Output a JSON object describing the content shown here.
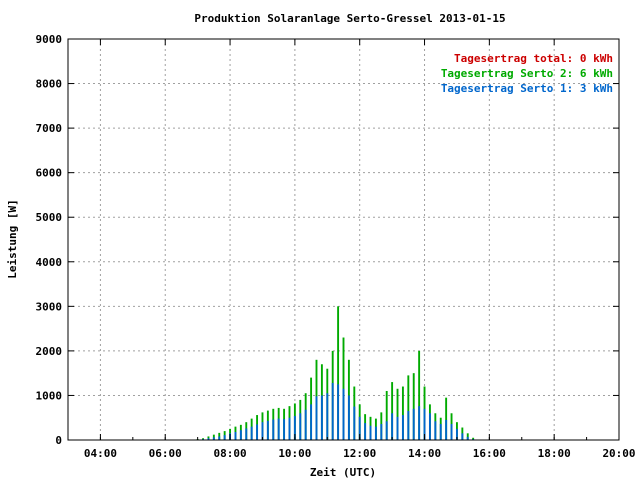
{
  "chart_data": {
    "type": "bar",
    "title": "Produktion Solaranlage Serto-Gressel 2013-01-15",
    "xlabel": "Zeit (UTC)",
    "ylabel": "Leistung [W]",
    "xlim": [
      "03:00",
      "20:00"
    ],
    "ylim": [
      0,
      9000
    ],
    "x_ticks": [
      "04:00",
      "06:00",
      "08:00",
      "10:00",
      "12:00",
      "14:00",
      "16:00",
      "18:00",
      "20:00"
    ],
    "y_ticks": [
      "0",
      "1000",
      "2000",
      "3000",
      "4000",
      "5000",
      "6000",
      "7000",
      "8000",
      "9000"
    ],
    "grid": true,
    "legend_position": "top-right",
    "colors": {
      "total": "#cc0000",
      "serto2": "#00aa00",
      "serto1": "#0066cc",
      "grid": "#a0a0a0"
    },
    "legend": [
      {
        "label": "Tagesertrag total: 0 kWh",
        "color": "#cc0000"
      },
      {
        "label": "Tagesertrag Serto 2: 6 kWh",
        "color": "#00aa00"
      },
      {
        "label": "Tagesertrag Serto 1: 3 kWh",
        "color": "#0066cc"
      }
    ],
    "x": [
      "07:00",
      "07:10",
      "07:20",
      "07:30",
      "07:40",
      "07:50",
      "08:00",
      "08:10",
      "08:20",
      "08:30",
      "08:40",
      "08:50",
      "09:00",
      "09:10",
      "09:20",
      "09:30",
      "09:40",
      "09:50",
      "10:00",
      "10:10",
      "10:20",
      "10:30",
      "10:40",
      "10:50",
      "11:00",
      "11:10",
      "11:20",
      "11:30",
      "11:40",
      "11:50",
      "12:00",
      "12:10",
      "12:20",
      "12:30",
      "12:40",
      "12:50",
      "13:00",
      "13:10",
      "13:20",
      "13:30",
      "13:40",
      "13:50",
      "14:00",
      "14:10",
      "14:20",
      "14:30",
      "14:40",
      "14:50",
      "15:00",
      "15:10",
      "15:20",
      "15:30",
      "15:40"
    ],
    "series": [
      {
        "name": "Serto 1",
        "values": [
          10,
          20,
          40,
          60,
          80,
          110,
          150,
          180,
          220,
          260,
          300,
          350,
          400,
          430,
          460,
          480,
          470,
          500,
          540,
          600,
          680,
          800,
          980,
          1000,
          1050,
          1280,
          1250,
          1150,
          1000,
          750,
          520,
          380,
          320,
          300,
          360,
          420,
          600,
          520,
          560,
          650,
          700,
          760,
          700,
          600,
          420,
          360,
          450,
          360,
          250,
          150,
          70,
          20,
          5
        ]
      },
      {
        "name": "Serto 2",
        "values": [
          20,
          40,
          80,
          120,
          160,
          200,
          250,
          300,
          340,
          400,
          480,
          560,
          620,
          660,
          700,
          720,
          700,
          760,
          820,
          900,
          1050,
          1400,
          1800,
          1700,
          1600,
          2000,
          3000,
          2300,
          1800,
          1200,
          800,
          580,
          520,
          480,
          620,
          1100,
          1300,
          1150,
          1200,
          1450,
          1500,
          2000,
          1200,
          800,
          600,
          500,
          950,
          600,
          400,
          280,
          150,
          50,
          10
        ]
      }
    ]
  }
}
